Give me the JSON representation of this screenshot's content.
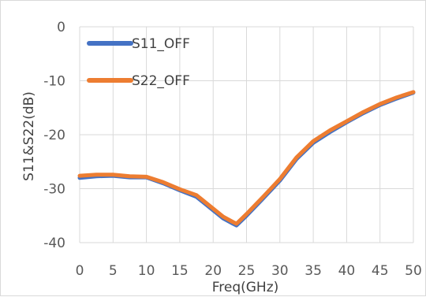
{
  "chart_data": {
    "type": "line",
    "title": "",
    "xlabel": "Freq(GHz)",
    "ylabel": "S11&S22(dB)",
    "xlim": [
      0,
      50
    ],
    "ylim": [
      -40,
      0
    ],
    "x_ticks": [
      0,
      5,
      10,
      15,
      20,
      25,
      30,
      35,
      40,
      45,
      50
    ],
    "y_ticks": [
      0,
      -10,
      -20,
      -30,
      -40
    ],
    "x_tick_labels": [
      "0",
      "5",
      "10",
      "15",
      "20",
      "25",
      "30",
      "35",
      "40",
      "45",
      "50"
    ],
    "y_tick_labels": [
      "0",
      "-10",
      "-20",
      "-30",
      "-40"
    ],
    "grid": true,
    "legend_position": "top-left",
    "series": [
      {
        "name": "S11_OFF",
        "color": "#4472c4",
        "x": [
          0,
          2.5,
          5,
          7.5,
          10,
          12.5,
          15,
          17.5,
          20,
          21.5,
          23,
          23.5,
          25,
          27.5,
          30,
          32.5,
          35,
          37.5,
          40,
          42.5,
          45,
          47.5,
          50
        ],
        "y": [
          -28.0,
          -27.7,
          -27.6,
          -27.9,
          -27.9,
          -29.0,
          -30.3,
          -31.5,
          -34.0,
          -35.5,
          -36.5,
          -36.8,
          -35.0,
          -31.8,
          -28.5,
          -24.5,
          -21.5,
          -19.5,
          -17.7,
          -16.0,
          -14.5,
          -13.3,
          -12.2
        ]
      },
      {
        "name": "S22_OFF",
        "color": "#ed7d31",
        "x": [
          0,
          2.5,
          5,
          7.5,
          10,
          12.5,
          15,
          17.5,
          20,
          21.5,
          23,
          23.5,
          25,
          27.5,
          30,
          32.5,
          35,
          37.5,
          40,
          42.5,
          45,
          47.5,
          50
        ],
        "y": [
          -27.6,
          -27.4,
          -27.4,
          -27.7,
          -27.8,
          -28.8,
          -30.1,
          -31.2,
          -33.7,
          -35.2,
          -36.2,
          -36.5,
          -34.7,
          -31.5,
          -28.2,
          -24.2,
          -21.2,
          -19.2,
          -17.5,
          -15.8,
          -14.3,
          -13.1,
          -12.1
        ]
      }
    ]
  }
}
